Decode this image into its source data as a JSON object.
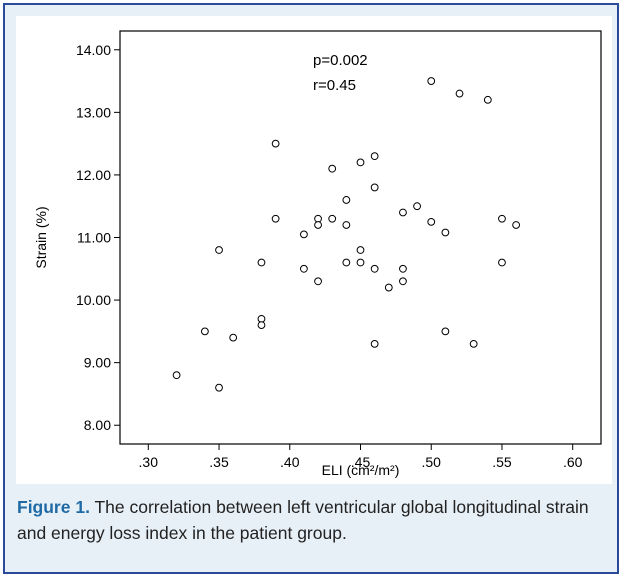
{
  "chart_data": {
    "type": "scatter",
    "xlabel": "ELI (cm²/m²)",
    "ylabel": "Strain (%)",
    "xlim": [
      0.28,
      0.62
    ],
    "ylim": [
      7.7,
      14.3
    ],
    "x_ticks": [
      0.3,
      0.35,
      0.4,
      0.45,
      0.5,
      0.55,
      0.6
    ],
    "x_tick_labels": [
      ".30",
      ".35",
      ".40",
      ".45",
      ".50",
      ".55",
      ".60"
    ],
    "y_ticks": [
      8,
      9,
      10,
      11,
      12,
      13,
      14
    ],
    "y_tick_labels": [
      "8.00",
      "9.00",
      "10.00",
      "11.00",
      "12.00",
      "13.00",
      "14.00"
    ],
    "annotations": [
      "p=0.002",
      "r=0.45"
    ],
    "grid": false,
    "marker": "open-circle",
    "points": [
      {
        "x": 0.32,
        "y": 8.8
      },
      {
        "x": 0.34,
        "y": 9.5
      },
      {
        "x": 0.35,
        "y": 8.6
      },
      {
        "x": 0.35,
        "y": 10.8
      },
      {
        "x": 0.36,
        "y": 9.4
      },
      {
        "x": 0.38,
        "y": 10.6
      },
      {
        "x": 0.38,
        "y": 9.7
      },
      {
        "x": 0.38,
        "y": 9.6
      },
      {
        "x": 0.39,
        "y": 12.5
      },
      {
        "x": 0.39,
        "y": 11.3
      },
      {
        "x": 0.41,
        "y": 11.05
      },
      {
        "x": 0.41,
        "y": 10.5
      },
      {
        "x": 0.42,
        "y": 11.3
      },
      {
        "x": 0.42,
        "y": 11.2
      },
      {
        "x": 0.42,
        "y": 10.3
      },
      {
        "x": 0.43,
        "y": 12.1
      },
      {
        "x": 0.43,
        "y": 11.3
      },
      {
        "x": 0.44,
        "y": 11.6
      },
      {
        "x": 0.44,
        "y": 11.2
      },
      {
        "x": 0.44,
        "y": 10.6
      },
      {
        "x": 0.45,
        "y": 12.2
      },
      {
        "x": 0.45,
        "y": 10.8
      },
      {
        "x": 0.45,
        "y": 10.6
      },
      {
        "x": 0.46,
        "y": 12.3
      },
      {
        "x": 0.46,
        "y": 11.8
      },
      {
        "x": 0.46,
        "y": 10.5
      },
      {
        "x": 0.46,
        "y": 9.3
      },
      {
        "x": 0.47,
        "y": 10.2
      },
      {
        "x": 0.48,
        "y": 11.4
      },
      {
        "x": 0.48,
        "y": 10.5
      },
      {
        "x": 0.48,
        "y": 10.3
      },
      {
        "x": 0.49,
        "y": 11.5
      },
      {
        "x": 0.5,
        "y": 13.5
      },
      {
        "x": 0.5,
        "y": 11.25
      },
      {
        "x": 0.51,
        "y": 11.08
      },
      {
        "x": 0.51,
        "y": 9.5
      },
      {
        "x": 0.52,
        "y": 13.3
      },
      {
        "x": 0.53,
        "y": 9.3
      },
      {
        "x": 0.54,
        "y": 13.2
      },
      {
        "x": 0.55,
        "y": 11.3
      },
      {
        "x": 0.55,
        "y": 10.6
      },
      {
        "x": 0.56,
        "y": 11.2
      }
    ]
  },
  "caption": {
    "label": "Figure 1.",
    "text": " The correlation between left ventricular global longitudinal strain and energy loss index in the patient group."
  },
  "colors": {
    "frame_border": "#2a4a9a",
    "frame_background": "#e8f0f7",
    "caption_label": "#1f6aa5",
    "axis": "#000000"
  }
}
